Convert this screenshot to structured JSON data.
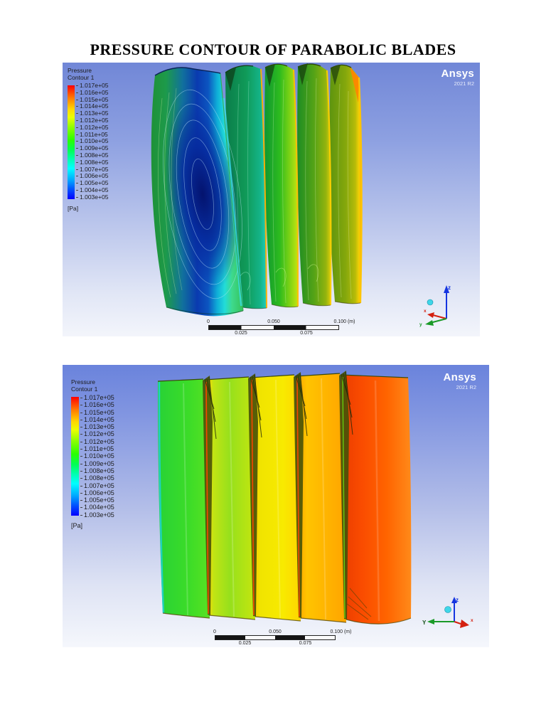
{
  "page": {
    "title": "PRESSURE CONTOUR OF PARABOLIC BLADES",
    "background": "#ffffff"
  },
  "figures": [
    {
      "name": "pressure-contour-view-1",
      "legend": {
        "title": "Pressure",
        "subtitle": "Contour 1",
        "unit": "[Pa]",
        "values": [
          "1.017e+05",
          "1.016e+05",
          "1.015e+05",
          "1.014e+05",
          "1.013e+05",
          "1.012e+05",
          "1.012e+05",
          "1.011e+05",
          "1.010e+05",
          "1.009e+05",
          "1.008e+05",
          "1.008e+05",
          "1.007e+05",
          "1.006e+05",
          "1.005e+05",
          "1.004e+05",
          "1.003e+05"
        ]
      },
      "brand": {
        "name": "Ansys",
        "version": "2021 R2"
      },
      "ruler": {
        "zero": "0",
        "mid": "0.050",
        "max": "0.100 (m)",
        "q1": "0.025",
        "q3": "0.075"
      },
      "triad": {
        "x": "x",
        "y": "y",
        "z": "z"
      }
    },
    {
      "name": "pressure-contour-view-2",
      "legend": {
        "title": "Pressure",
        "subtitle": "Contour 1",
        "unit": "[Pa]",
        "values": [
          "1.017e+05",
          "1.016e+05",
          "1.015e+05",
          "1.014e+05",
          "1.013e+05",
          "1.012e+05",
          "1.012e+05",
          "1.011e+05",
          "1.010e+05",
          "1.009e+05",
          "1.008e+05",
          "1.008e+05",
          "1.007e+05",
          "1.006e+05",
          "1.005e+05",
          "1.004e+05",
          "1.003e+05"
        ]
      },
      "brand": {
        "name": "Ansys",
        "version": "2021 R2"
      },
      "ruler": {
        "zero": "0",
        "mid": "0.050",
        "max": "0.100 (m)",
        "q1": "0.025",
        "q3": "0.075"
      },
      "triad": {
        "x": "x",
        "y": "Y",
        "z": "z"
      }
    }
  ],
  "colors": {
    "colorbar_top_to_bottom": [
      "#ff0000",
      "#ff7b00",
      "#ffd800",
      "#eaff00",
      "#8cff00",
      "#2bff00",
      "#00ff55",
      "#00ffb0",
      "#00ffff",
      "#00aaff",
      "#0055ff",
      "#0000ff"
    ],
    "figure_bg_top": "#6e86da",
    "figure_bg_bottom": "#f4f6fb",
    "brand_text": "#ffffff",
    "legend_text": "#1c1c1c",
    "axis_x": "#d42010",
    "axis_y": "#1a9a28",
    "axis_z": "#1535e0",
    "origin_sphere": "#3fd6e8",
    "ruler_dark": "#141414",
    "ruler_light": "#fafafa"
  },
  "chart_data": [
    {
      "type": "heatmap",
      "title": "Pressure Contour 1 - view 1, suction side of 5 parabolic blades",
      "unit": "Pa",
      "scale_min": 100300,
      "scale_max": 101700,
      "legend_levels_pa": [
        101700,
        101600,
        101500,
        101400,
        101300,
        101200,
        101200,
        101100,
        101000,
        100900,
        100800,
        100800,
        100700,
        100600,
        100500,
        100400,
        100300
      ],
      "scale_bar_m": [
        0,
        0.025,
        0.05,
        0.075,
        0.1
      ],
      "blade_count": 5,
      "blades_left_to_right": [
        "green leading surface with deep-blue low-pressure core (~1.003e+05 Pa) and cyan trailing band",
        "dark teal-green (~1.009e+05 Pa) with orange trailing-edge strip",
        "green to yellow-green (~1.010e+05 Pa) with yellow trailing-edge strip",
        "olive-green (~1.011e+05 Pa) with yellow trailing-edge strip",
        "olive-yellow (~1.012e+05 Pa) with orange trailing-edge tip"
      ]
    },
    {
      "type": "heatmap",
      "title": "Pressure Contour 1 - view 2, pressure side of 5 parabolic blades",
      "unit": "Pa",
      "scale_min": 100300,
      "scale_max": 101700,
      "legend_levels_pa": [
        101700,
        101600,
        101500,
        101400,
        101300,
        101200,
        101200,
        101100,
        101000,
        100900,
        100800,
        100800,
        100700,
        100600,
        100500,
        100400,
        100300
      ],
      "scale_bar_m": [
        0,
        0.025,
        0.05,
        0.075,
        0.1
      ],
      "blade_count": 5,
      "blades_left_to_right": [
        "bright green (~1.011e+05 Pa) with cyan leading sliver",
        "yellow-green (~1.012e+05 Pa) with orange stagnation strip and dark leading-edge mesh",
        "yellow (~1.013e+05 Pa) with orange stagnation strip and dark leading-edge mesh",
        "amber-orange (~1.014e+05 Pa) with dark leading-edge mesh",
        "red-orange (~1.016e+05 Pa, highest pressure)"
      ]
    }
  ]
}
